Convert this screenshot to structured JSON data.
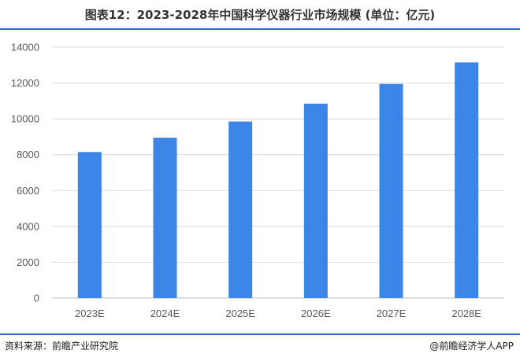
{
  "header": {
    "title": "图表12：2023-2028年中国科学仪器行业市场规模 (单位：亿元)"
  },
  "footer": {
    "source": "资料来源：前瞻产业研究院",
    "brand": "@前瞻经济学人APP"
  },
  "colors": {
    "bar": "#3a85e6",
    "accent": "#2a6fd6",
    "grid": "#d9d9d9",
    "axis": "#bfbfbf"
  },
  "chart_data": {
    "type": "bar",
    "title": "图表12：2023-2028年中国科学仪器行业市场规模 (单位：亿元)",
    "categories": [
      "2023E",
      "2024E",
      "2025E",
      "2026E",
      "2027E",
      "2028E"
    ],
    "values": [
      8150,
      8950,
      9850,
      10850,
      11950,
      13150
    ],
    "yticks": [
      0,
      2000,
      4000,
      6000,
      8000,
      10000,
      12000,
      14000
    ],
    "ylim": [
      0,
      14000
    ],
    "grid": true,
    "legend": "none"
  }
}
